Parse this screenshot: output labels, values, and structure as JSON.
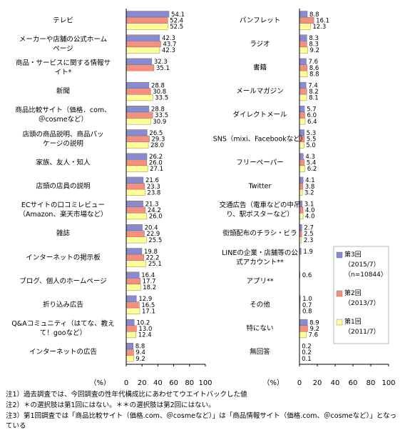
{
  "chart_data": [
    {
      "type": "bar",
      "orientation": "horizontal",
      "categories": [
        "テレビ",
        "メーカーや店舗の公式ホーム\nページ",
        "商品・サービスに関する情報サ\nイト*",
        "新聞",
        "商品比較サイト（価格．com、\n＠cosmeなど）",
        "店頭の商品説明、商品パッ\nケージの説明",
        "家族、友人・知人",
        "店頭の店員の説明",
        "ECサイトの口コミレビュー\n（Amazon、楽天市場など）",
        "雑誌",
        "インターネットの掲示板",
        "ブログ、個人のホームページ",
        "折り込み広告",
        "Q&Aコミュニティ（はてな、教え\nて！gooなど）",
        "インターネットの広告"
      ],
      "series": [
        {
          "color": "#8a8ad0",
          "values": [
            54.1,
            42.3,
            32.3,
            28.8,
            28.8,
            26.5,
            26.2,
            21.6,
            21.3,
            20.4,
            19.8,
            16.4,
            12.9,
            10.2,
            8.8
          ],
          "value_labels": [
            "54.1",
            "42.3",
            "32.3",
            "28.8",
            "28.8",
            "26.5",
            "26.2",
            "21.6",
            "21.3",
            "20.4",
            "19.8",
            "16.4",
            "12.9",
            "10.2",
            "8.8"
          ]
        },
        {
          "color": "#f4907c",
          "values": [
            52.4,
            43.7,
            35.1,
            30.8,
            33.5,
            29.3,
            26.0,
            23.3,
            24.2,
            22.9,
            22.2,
            17.7,
            16.5,
            13.0,
            9.4
          ],
          "value_labels": [
            "52.4",
            "43.7",
            "35.1",
            "30.8",
            "33.5",
            "29.3",
            "26.0",
            "23.3",
            "24.2",
            "22.9",
            "22.2",
            "17.7",
            "16.5",
            "13.0",
            "9.4"
          ]
        },
        {
          "color": "#ffff99",
          "values": [
            52.5,
            42.3,
            null,
            33.5,
            30.9,
            28.0,
            27.1,
            23.8,
            26.0,
            25.5,
            25.1,
            18.2,
            17.1,
            12.4,
            9.2
          ],
          "value_labels": [
            "52.5",
            "42.3",
            null,
            "33.5",
            "30.9",
            "28.0",
            "27.1",
            "23.8",
            "26.0",
            "25.5",
            "25.1",
            "18.2",
            "17.1",
            "12.4",
            "9.2"
          ]
        }
      ],
      "x_label": "（%）",
      "xlim": [
        0,
        100
      ],
      "xticks": [
        0,
        20,
        40,
        60,
        80,
        100
      ],
      "grid": false
    },
    {
      "type": "bar",
      "orientation": "horizontal",
      "categories": [
        "パンフレット",
        "ラジオ",
        "書籍",
        "メールマガジン",
        "ダイレクトメール",
        "SNS（mixi、Facebookなど）",
        "フリーペーパー",
        "Twitter",
        "交通広告（電車などの中吊\nり、駅ポスターなど）",
        "街頭配布のチラシ・ビラ",
        "LINEの企業・店舗等の公\n式アカウント**",
        "アプリ**",
        "その他",
        "特にない",
        "無回答"
      ],
      "series": [
        {
          "name": "第3回",
          "period": "（2015/7）",
          "note": "（n=10844）",
          "color": "#8a8ad0",
          "values": [
            8.8,
            8.3,
            7.6,
            7.4,
            5.7,
            5.3,
            4.3,
            4.1,
            3.1,
            2.7,
            1.9,
            0.6,
            1.0,
            8.9,
            0.2
          ],
          "value_labels": [
            "8.8",
            "8.3",
            "7.6",
            "7.4",
            "5.7",
            "5.3",
            "4.3",
            "4.1",
            "3.1",
            "2.7",
            "1.9",
            "0.6",
            "1.0",
            "8.9",
            "0.2"
          ]
        },
        {
          "name": "第2回",
          "period": "（2013/7）",
          "color": "#f4907c",
          "values": [
            16.1,
            8.3,
            8.6,
            8.2,
            6.0,
            5.5,
            5.4,
            3.8,
            4.0,
            2.5,
            null,
            null,
            0.7,
            9.2,
            0.2
          ],
          "value_labels": [
            "16.1",
            "8.3",
            "8.6",
            "8.2",
            "6.0",
            "5.5",
            "5.4",
            "3.8",
            "4.0",
            "2.5",
            null,
            null,
            "0.7",
            "9.2",
            "0.2"
          ]
        },
        {
          "name": "第1回",
          "period": "（2011/7）",
          "color": "#ffff99",
          "values": [
            12.3,
            9.2,
            8.8,
            8.1,
            6.4,
            5.0,
            6.2,
            3.2,
            4.0,
            2.3,
            null,
            null,
            0.8,
            7.6,
            0.1
          ],
          "value_labels": [
            "12.3",
            "9.2",
            "8.8",
            "8.1",
            "6.4",
            "5.0",
            "6.2",
            "3.2",
            "4.0",
            "2.3",
            null,
            null,
            "0.8",
            "7.6",
            "0.1"
          ]
        }
      ],
      "x_label": "（%）",
      "xlim": [
        0,
        100
      ],
      "xticks": [
        0,
        20,
        40,
        60,
        80,
        100
      ],
      "grid": false,
      "legend": "lower-right"
    }
  ],
  "notes": [
    "注1）過去調査では、今回調査の性年代構成比にあわせてウエイトバックした値",
    "注2）＊の選択肢は第1回にはない。＊＊の選択肢は第2回にはない。",
    "注3）第1回調査では「商品比較サイト（価格.com、＠cosmeなど）」は「商品情報サイト（価格.com、＠cosmeなど）」となっている"
  ]
}
